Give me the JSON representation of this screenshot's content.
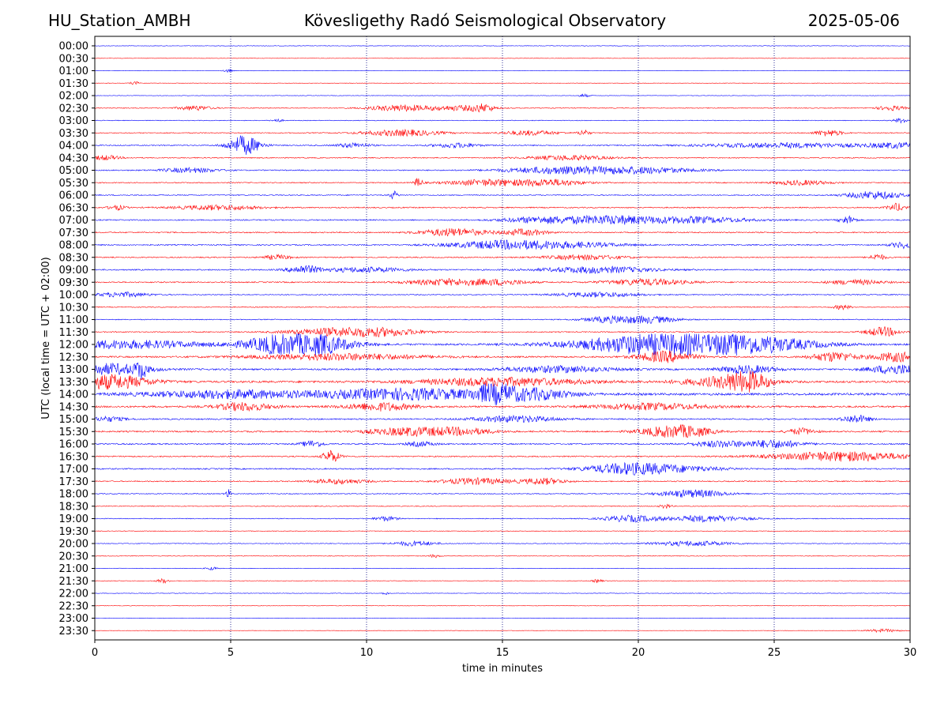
{
  "header": {
    "station": "HU_Station_AMBH",
    "title": "Kövesligethy Radó Seismological Observatory",
    "date": "2025-05-06"
  },
  "chart_data": {
    "type": "line",
    "xlabel": "time in minutes",
    "ylabel": "UTC (local time = UTC + 02:00)",
    "xlim": [
      0,
      30
    ],
    "x_ticks": [
      0,
      5,
      10,
      15,
      20,
      25,
      30
    ],
    "vertical_gridlines_at": [
      5,
      10,
      15,
      20,
      25
    ],
    "grid": "dotted vertical",
    "colors": {
      "even_rows": "#0000ff",
      "odd_rows": "#ff0000",
      "gridline": "#000080"
    },
    "rows": [
      {
        "label": "00:00",
        "noise": 0.6,
        "events": []
      },
      {
        "label": "00:30",
        "noise": 0.5,
        "events": []
      },
      {
        "label": "01:00",
        "noise": 0.5,
        "events": [
          {
            "t": 4.9,
            "amp": 2,
            "dur": 0.15
          }
        ]
      },
      {
        "label": "01:30",
        "noise": 0.5,
        "events": [
          {
            "t": 1.5,
            "amp": 2,
            "dur": 0.2
          }
        ]
      },
      {
        "label": "02:00",
        "noise": 0.5,
        "events": [
          {
            "t": 18.0,
            "amp": 2,
            "dur": 0.2
          }
        ]
      },
      {
        "label": "02:30",
        "noise": 0.9,
        "events": [
          {
            "t": 3.7,
            "amp": 3,
            "dur": 0.6
          },
          {
            "t": 11.3,
            "amp": 4,
            "dur": 1.2
          },
          {
            "t": 13.5,
            "amp": 3,
            "dur": 1.0
          },
          {
            "t": 14.3,
            "amp": 4,
            "dur": 0.4
          },
          {
            "t": 29.3,
            "amp": 3,
            "dur": 0.5
          }
        ]
      },
      {
        "label": "03:00",
        "noise": 0.8,
        "events": [
          {
            "t": 6.7,
            "amp": 2,
            "dur": 0.2
          },
          {
            "t": 29.7,
            "amp": 3,
            "dur": 0.3
          }
        ]
      },
      {
        "label": "03:30",
        "noise": 1.0,
        "events": [
          {
            "t": 11.3,
            "amp": 4,
            "dur": 1.4
          },
          {
            "t": 16.0,
            "amp": 3,
            "dur": 1.0
          },
          {
            "t": 18.0,
            "amp": 4,
            "dur": 0.2
          },
          {
            "t": 27.0,
            "amp": 4,
            "dur": 0.5
          }
        ]
      },
      {
        "label": "04:00",
        "noise": 1.2,
        "events": [
          {
            "t": 5.5,
            "amp": 12,
            "dur": 0.6
          },
          {
            "t": 9.5,
            "amp": 3,
            "dur": 0.6
          },
          {
            "t": 13.3,
            "amp": 3,
            "dur": 0.8
          },
          {
            "t": 25.5,
            "amp": 3,
            "dur": 3.0
          },
          {
            "t": 29.5,
            "amp": 3,
            "dur": 1.0
          }
        ]
      },
      {
        "label": "04:30",
        "noise": 1.1,
        "events": [
          {
            "t": 0.4,
            "amp": 3,
            "dur": 0.5
          },
          {
            "t": 17.5,
            "amp": 3,
            "dur": 1.5
          }
        ]
      },
      {
        "label": "05:00",
        "noise": 1.2,
        "events": [
          {
            "t": 3.5,
            "amp": 3,
            "dur": 1.0
          },
          {
            "t": 17.0,
            "amp": 4,
            "dur": 2.0
          },
          {
            "t": 20.0,
            "amp": 4,
            "dur": 2.0
          }
        ]
      },
      {
        "label": "05:30",
        "noise": 1.1,
        "events": [
          {
            "t": 11.9,
            "amp": 6,
            "dur": 0.15
          },
          {
            "t": 14.5,
            "amp": 4,
            "dur": 1.5
          },
          {
            "t": 16.8,
            "amp": 4,
            "dur": 1.2
          },
          {
            "t": 26.0,
            "amp": 3,
            "dur": 1.0
          }
        ]
      },
      {
        "label": "06:00",
        "noise": 1.1,
        "events": [
          {
            "t": 11.0,
            "amp": 5,
            "dur": 0.15
          },
          {
            "t": 28.7,
            "amp": 5,
            "dur": 1.0
          }
        ]
      },
      {
        "label": "06:30",
        "noise": 1.3,
        "events": [
          {
            "t": 0.8,
            "amp": 3,
            "dur": 0.3
          },
          {
            "t": 4.5,
            "amp": 3,
            "dur": 1.5
          },
          {
            "t": 29.5,
            "amp": 5,
            "dur": 0.3
          }
        ]
      },
      {
        "label": "07:00",
        "noise": 1.3,
        "events": [
          {
            "t": 16.5,
            "amp": 4,
            "dur": 1.5
          },
          {
            "t": 19.0,
            "amp": 5,
            "dur": 1.5
          },
          {
            "t": 22.0,
            "amp": 4,
            "dur": 2.0
          },
          {
            "t": 27.7,
            "amp": 5,
            "dur": 0.3
          }
        ]
      },
      {
        "label": "07:30",
        "noise": 1.3,
        "events": [
          {
            "t": 13.2,
            "amp": 5,
            "dur": 1.2
          },
          {
            "t": 15.8,
            "amp": 4,
            "dur": 0.8
          }
        ]
      },
      {
        "label": "08:00",
        "noise": 1.3,
        "events": [
          {
            "t": 15.0,
            "amp": 5,
            "dur": 2.0
          },
          {
            "t": 17.5,
            "amp": 3,
            "dur": 2.0
          },
          {
            "t": 29.8,
            "amp": 4,
            "dur": 0.5
          }
        ]
      },
      {
        "label": "08:30",
        "noise": 1.2,
        "events": [
          {
            "t": 6.7,
            "amp": 3,
            "dur": 0.5
          },
          {
            "t": 18.0,
            "amp": 3,
            "dur": 1.5
          },
          {
            "t": 28.8,
            "amp": 4,
            "dur": 0.3
          }
        ]
      },
      {
        "label": "09:00",
        "noise": 1.4,
        "events": [
          {
            "t": 7.7,
            "amp": 5,
            "dur": 0.6
          },
          {
            "t": 10.0,
            "amp": 3,
            "dur": 1.5
          },
          {
            "t": 18.5,
            "amp": 4,
            "dur": 2.0
          }
        ]
      },
      {
        "label": "09:30",
        "noise": 1.3,
        "events": [
          {
            "t": 13.0,
            "amp": 4,
            "dur": 1.5
          },
          {
            "t": 15.0,
            "amp": 3,
            "dur": 1.0
          },
          {
            "t": 20.3,
            "amp": 4,
            "dur": 1.5
          },
          {
            "t": 28.0,
            "amp": 3,
            "dur": 1.0
          }
        ]
      },
      {
        "label": "10:00",
        "noise": 1.1,
        "events": [
          {
            "t": 1.0,
            "amp": 3,
            "dur": 1.0
          },
          {
            "t": 18.5,
            "amp": 3,
            "dur": 1.5
          }
        ]
      },
      {
        "label": "10:30",
        "noise": 1.0,
        "events": [
          {
            "t": 27.5,
            "amp": 3,
            "dur": 0.3
          }
        ]
      },
      {
        "label": "11:00",
        "noise": 1.0,
        "events": [
          {
            "t": 19.0,
            "amp": 4,
            "dur": 1.0
          },
          {
            "t": 20.5,
            "amp": 4,
            "dur": 1.0
          }
        ]
      },
      {
        "label": "11:30",
        "noise": 1.2,
        "events": [
          {
            "t": 8.5,
            "amp": 4,
            "dur": 1.5
          },
          {
            "t": 10.5,
            "amp": 5,
            "dur": 1.5
          },
          {
            "t": 29.0,
            "amp": 6,
            "dur": 0.6
          }
        ]
      },
      {
        "label": "12:00",
        "noise": 2.0,
        "events": [
          {
            "t": 1.0,
            "amp": 5,
            "dur": 3.0
          },
          {
            "t": 7.0,
            "amp": 9,
            "dur": 1.5
          },
          {
            "t": 8.0,
            "amp": 10,
            "dur": 1.5
          },
          {
            "t": 20.5,
            "amp": 10,
            "dur": 3.0
          },
          {
            "t": 22.5,
            "amp": 9,
            "dur": 2.5
          },
          {
            "t": 25.0,
            "amp": 5,
            "dur": 2.0
          }
        ]
      },
      {
        "label": "12:30",
        "noise": 1.8,
        "events": [
          {
            "t": 9.0,
            "amp": 4,
            "dur": 3.0
          },
          {
            "t": 21.0,
            "amp": 7,
            "dur": 1.0
          },
          {
            "t": 27.2,
            "amp": 6,
            "dur": 0.8
          },
          {
            "t": 29.5,
            "amp": 6,
            "dur": 0.8
          }
        ]
      },
      {
        "label": "13:00",
        "noise": 1.8,
        "events": [
          {
            "t": 0.5,
            "amp": 7,
            "dur": 1.5
          },
          {
            "t": 1.7,
            "amp": 9,
            "dur": 0.2
          },
          {
            "t": 17.0,
            "amp": 4,
            "dur": 2.0
          },
          {
            "t": 24.0,
            "amp": 5,
            "dur": 1.0
          },
          {
            "t": 29.5,
            "amp": 6,
            "dur": 1.0
          }
        ]
      },
      {
        "label": "13:30",
        "noise": 2.2,
        "events": [
          {
            "t": 0.5,
            "amp": 9,
            "dur": 1.5
          },
          {
            "t": 15.0,
            "amp": 5,
            "dur": 3.0
          },
          {
            "t": 24.0,
            "amp": 11,
            "dur": 0.8
          },
          {
            "t": 23.0,
            "amp": 5,
            "dur": 1.5
          }
        ]
      },
      {
        "label": "14:00",
        "noise": 2.5,
        "events": [
          {
            "t": 11.5,
            "amp": 7,
            "dur": 3.0
          },
          {
            "t": 14.7,
            "amp": 11,
            "dur": 0.6
          },
          {
            "t": 16.0,
            "amp": 7,
            "dur": 1.5
          },
          {
            "t": 5.0,
            "amp": 5,
            "dur": 3.0
          }
        ]
      },
      {
        "label": "14:30",
        "noise": 2.0,
        "events": [
          {
            "t": 5.5,
            "amp": 5,
            "dur": 1.0
          },
          {
            "t": 10.5,
            "amp": 5,
            "dur": 1.2
          },
          {
            "t": 20.5,
            "amp": 4,
            "dur": 2.0
          }
        ]
      },
      {
        "label": "15:00",
        "noise": 1.5,
        "events": [
          {
            "t": 0.5,
            "amp": 3,
            "dur": 0.6
          },
          {
            "t": 15.5,
            "amp": 4,
            "dur": 1.5
          },
          {
            "t": 28.0,
            "amp": 5,
            "dur": 0.5
          }
        ]
      },
      {
        "label": "15:30",
        "noise": 1.6,
        "events": [
          {
            "t": 11.5,
            "amp": 5,
            "dur": 1.5
          },
          {
            "t": 13.5,
            "amp": 4,
            "dur": 1.2
          },
          {
            "t": 21.0,
            "amp": 6,
            "dur": 1.0
          },
          {
            "t": 22.0,
            "amp": 5,
            "dur": 0.8
          },
          {
            "t": 26.0,
            "amp": 4,
            "dur": 0.5
          }
        ]
      },
      {
        "label": "16:00",
        "noise": 1.5,
        "events": [
          {
            "t": 8.0,
            "amp": 4,
            "dur": 0.4
          },
          {
            "t": 12.0,
            "amp": 3,
            "dur": 0.5
          },
          {
            "t": 23.0,
            "amp": 4,
            "dur": 1.0
          },
          {
            "t": 25.0,
            "amp": 5,
            "dur": 1.0
          }
        ]
      },
      {
        "label": "16:30",
        "noise": 1.4,
        "events": [
          {
            "t": 8.7,
            "amp": 8,
            "dur": 0.3
          },
          {
            "t": 27.5,
            "amp": 6,
            "dur": 2.5
          }
        ]
      },
      {
        "label": "17:00",
        "noise": 1.4,
        "events": [
          {
            "t": 19.5,
            "amp": 5,
            "dur": 1.5
          },
          {
            "t": 21.0,
            "amp": 4,
            "dur": 2.0
          }
        ]
      },
      {
        "label": "17:30",
        "noise": 1.2,
        "events": [
          {
            "t": 9.0,
            "amp": 3,
            "dur": 1.0
          },
          {
            "t": 14.0,
            "amp": 4,
            "dur": 1.2
          },
          {
            "t": 16.5,
            "amp": 4,
            "dur": 0.8
          }
        ]
      },
      {
        "label": "18:00",
        "noise": 1.0,
        "events": [
          {
            "t": 4.9,
            "amp": 6,
            "dur": 0.1
          },
          {
            "t": 22.0,
            "amp": 5,
            "dur": 1.2
          }
        ]
      },
      {
        "label": "18:30",
        "noise": 0.9,
        "events": [
          {
            "t": 21.0,
            "amp": 3,
            "dur": 0.2
          }
        ]
      },
      {
        "label": "19:00",
        "noise": 0.9,
        "events": [
          {
            "t": 10.7,
            "amp": 3,
            "dur": 0.4
          },
          {
            "t": 19.7,
            "amp": 4,
            "dur": 1.0
          },
          {
            "t": 22.5,
            "amp": 4,
            "dur": 1.5
          }
        ]
      },
      {
        "label": "19:30",
        "noise": 0.7,
        "events": []
      },
      {
        "label": "20:00",
        "noise": 0.8,
        "events": [
          {
            "t": 11.8,
            "amp": 3,
            "dur": 0.8
          },
          {
            "t": 22.0,
            "amp": 3,
            "dur": 1.5
          }
        ]
      },
      {
        "label": "20:30",
        "noise": 0.7,
        "events": [
          {
            "t": 12.5,
            "amp": 2,
            "dur": 0.2
          }
        ]
      },
      {
        "label": "21:00",
        "noise": 0.6,
        "events": [
          {
            "t": 4.3,
            "amp": 2,
            "dur": 0.2
          }
        ]
      },
      {
        "label": "21:30",
        "noise": 0.6,
        "events": [
          {
            "t": 2.5,
            "amp": 3,
            "dur": 0.2
          },
          {
            "t": 18.5,
            "amp": 2,
            "dur": 0.2
          }
        ]
      },
      {
        "label": "22:00",
        "noise": 0.6,
        "events": [
          {
            "t": 10.7,
            "amp": 2,
            "dur": 0.1
          }
        ]
      },
      {
        "label": "22:30",
        "noise": 0.5,
        "events": []
      },
      {
        "label": "23:00",
        "noise": 0.5,
        "events": []
      },
      {
        "label": "23:30",
        "noise": 0.5,
        "events": [
          {
            "t": 29.0,
            "amp": 2,
            "dur": 0.6
          }
        ]
      }
    ]
  }
}
